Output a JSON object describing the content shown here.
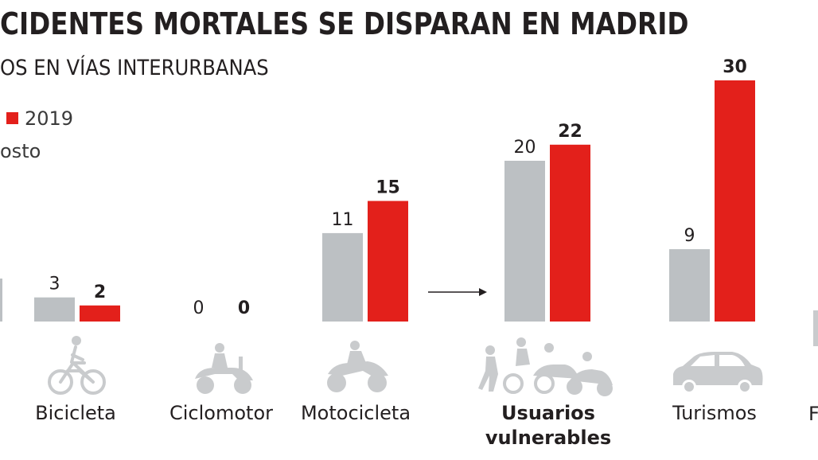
{
  "header": {
    "title": "CIDENTES MORTALES SE DISPARAN EN MADRID",
    "subtitle": "OS EN VÍAS INTERURBANAS"
  },
  "legend": {
    "series_2019": "2019",
    "note": "osto"
  },
  "colors": {
    "series_prev": "#bcc0c3",
    "series_2019": "#e3201b",
    "icon": "#c9cbcd",
    "text": "#231f20"
  },
  "chart_data": {
    "type": "bar",
    "title": "CIDENTES MORTALES SE DISPARAN EN MADRID",
    "subtitle": "OS EN VÍAS INTERURBANAS",
    "categories": [
      "Bicicleta",
      "Ciclomotor",
      "Motocicleta",
      "Usuarios vulnerables",
      "Turismos"
    ],
    "series": [
      {
        "values": [
          3,
          0,
          11,
          20,
          9
        ]
      },
      {
        "name": "2019",
        "values": [
          2,
          0,
          15,
          22,
          30
        ]
      }
    ],
    "category_icons": [
      "bicycle-icon",
      "scooter-icon",
      "motorcycle-icon",
      "vulnerable-users-icon",
      "car-icon"
    ],
    "ylim": [
      0,
      30
    ],
    "grid": false,
    "legend_position": "top-left",
    "annotations": [
      "arrow-to-usuarios-vulnerables"
    ]
  }
}
